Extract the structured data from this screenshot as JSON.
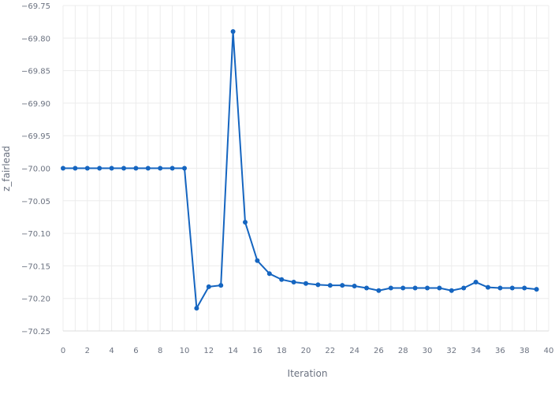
{
  "chart_data": {
    "type": "line",
    "xlabel": "Iteration",
    "ylabel": "z_fairlead",
    "xlim": [
      0,
      40
    ],
    "ylim": [
      -70.25,
      -69.75
    ],
    "x_ticks": [
      "0",
      "2",
      "4",
      "6",
      "8",
      "10",
      "12",
      "14",
      "16",
      "18",
      "20",
      "22",
      "24",
      "26",
      "28",
      "30",
      "32",
      "34",
      "36",
      "38",
      "40"
    ],
    "y_ticks": [
      "−69.75",
      "−69.80",
      "−69.85",
      "−69.90",
      "−69.95",
      "−70.00",
      "−70.05",
      "−70.10",
      "−70.15",
      "−70.20",
      "−70.25"
    ],
    "grid": true,
    "line_color": "#1565c0",
    "series": [
      {
        "x": [
          0,
          1,
          2,
          3,
          4,
          5,
          6,
          7,
          8,
          9,
          10,
          11,
          12,
          13,
          14,
          15,
          16,
          17,
          18,
          19,
          20,
          21,
          22,
          23,
          24,
          25,
          26,
          27,
          28,
          29,
          30,
          31,
          32,
          33,
          34,
          35,
          36,
          37,
          38,
          39
        ],
        "values": [
          -70.0,
          -70.0,
          -70.0,
          -70.0,
          -70.0,
          -70.0,
          -70.0,
          -70.0,
          -70.0,
          -70.0,
          -70.0,
          -70.215,
          -70.182,
          -70.18,
          -69.79,
          -70.083,
          -70.142,
          -70.162,
          -70.171,
          -70.175,
          -70.177,
          -70.179,
          -70.18,
          -70.18,
          -70.181,
          -70.184,
          -70.188,
          -70.184,
          -70.184,
          -70.184,
          -70.184,
          -70.184,
          -70.188,
          -70.184,
          -70.175,
          -70.183,
          -70.184,
          -70.184,
          -70.184,
          -70.186
        ]
      }
    ]
  }
}
